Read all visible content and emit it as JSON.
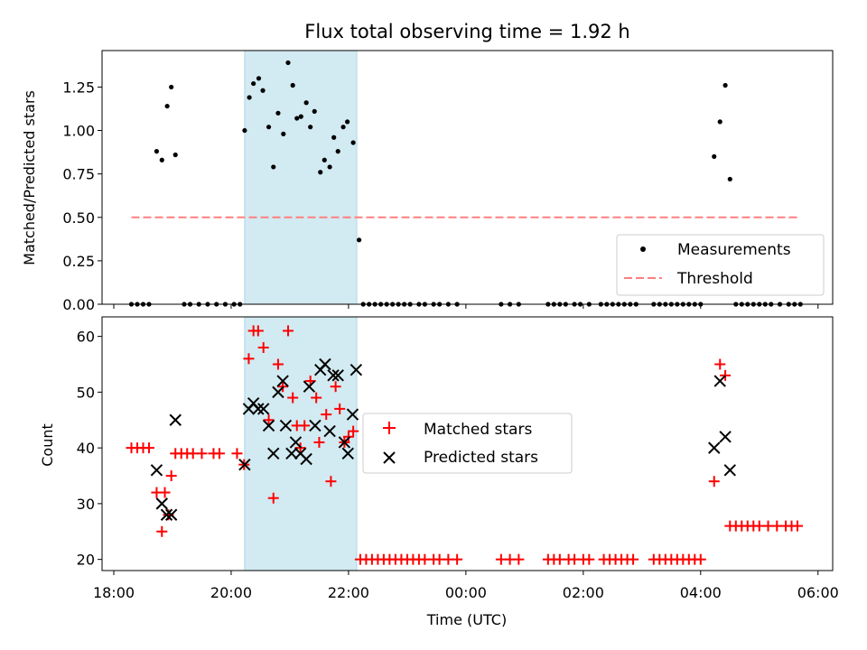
{
  "title": "Flux total observing time = 1.92 h",
  "colors": {
    "measurement": "#000000",
    "threshold": "#ff7f7f",
    "matched": "#ff0000",
    "predicted": "#000000",
    "shade": "#add8e6"
  },
  "chart_data": [
    {
      "type": "scatter",
      "ylabel": "Matched/Predicted stars",
      "ylim": [
        0,
        1.46
      ],
      "yticks": [
        0.0,
        0.25,
        0.5,
        0.75,
        1.0,
        1.25
      ],
      "ytick_labels": [
        "0.00",
        "0.25",
        "0.50",
        "0.75",
        "1.00",
        "1.25"
      ],
      "shaded_span_hours": [
        20.23,
        22.14
      ],
      "legend": {
        "position": "bottom-right",
        "entries": [
          "Measurements",
          "Threshold"
        ]
      },
      "threshold": {
        "name": "Threshold",
        "value": 0.5,
        "x_range_hours": [
          18.3,
          29.7
        ]
      },
      "series": [
        {
          "name": "Measurements",
          "points": [
            [
              18.73,
              0.88
            ],
            [
              18.82,
              0.83
            ],
            [
              18.91,
              1.14
            ],
            [
              18.98,
              1.25
            ],
            [
              19.05,
              0.86
            ],
            [
              20.23,
              1.0
            ],
            [
              20.31,
              1.19
            ],
            [
              20.38,
              1.27
            ],
            [
              20.47,
              1.3
            ],
            [
              20.54,
              1.23
            ],
            [
              20.64,
              1.02
            ],
            [
              20.72,
              0.79
            ],
            [
              20.8,
              1.1
            ],
            [
              20.89,
              0.98
            ],
            [
              20.97,
              1.39
            ],
            [
              21.05,
              1.26
            ],
            [
              21.12,
              1.07
            ],
            [
              21.19,
              1.08
            ],
            [
              21.28,
              1.16
            ],
            [
              21.35,
              1.02
            ],
            [
              21.42,
              1.11
            ],
            [
              21.52,
              0.76
            ],
            [
              21.59,
              0.83
            ],
            [
              21.68,
              0.79
            ],
            [
              21.75,
              0.96
            ],
            [
              21.82,
              0.88
            ],
            [
              21.91,
              1.02
            ],
            [
              21.98,
              1.05
            ],
            [
              22.08,
              0.93
            ],
            [
              22.18,
              0.37
            ],
            [
              28.23,
              0.85
            ],
            [
              28.33,
              1.05
            ],
            [
              28.42,
              1.26
            ],
            [
              28.5,
              0.72
            ],
            [
              18.3,
              0
            ],
            [
              18.4,
              0
            ],
            [
              18.5,
              0
            ],
            [
              18.6,
              0
            ],
            [
              19.2,
              0
            ],
            [
              19.3,
              0
            ],
            [
              19.45,
              0
            ],
            [
              19.6,
              0
            ],
            [
              19.75,
              0
            ],
            [
              19.9,
              0
            ],
            [
              20.05,
              0
            ],
            [
              20.15,
              0
            ],
            [
              22.25,
              0
            ],
            [
              22.35,
              0
            ],
            [
              22.45,
              0
            ],
            [
              22.55,
              0
            ],
            [
              22.65,
              0
            ],
            [
              22.75,
              0
            ],
            [
              22.85,
              0
            ],
            [
              22.95,
              0
            ],
            [
              23.05,
              0
            ],
            [
              23.2,
              0
            ],
            [
              23.3,
              0
            ],
            [
              23.45,
              0
            ],
            [
              23.55,
              0
            ],
            [
              23.7,
              0
            ],
            [
              23.85,
              0
            ],
            [
              24.6,
              0
            ],
            [
              24.75,
              0
            ],
            [
              24.9,
              0
            ],
            [
              25.4,
              0
            ],
            [
              25.5,
              0
            ],
            [
              25.6,
              0
            ],
            [
              25.7,
              0
            ],
            [
              25.85,
              0
            ],
            [
              25.95,
              0
            ],
            [
              26.1,
              0
            ],
            [
              26.3,
              0
            ],
            [
              26.4,
              0
            ],
            [
              26.5,
              0
            ],
            [
              26.6,
              0
            ],
            [
              26.7,
              0
            ],
            [
              26.8,
              0
            ],
            [
              26.9,
              0
            ],
            [
              27.2,
              0
            ],
            [
              27.3,
              0
            ],
            [
              27.4,
              0
            ],
            [
              27.5,
              0
            ],
            [
              27.6,
              0
            ],
            [
              27.7,
              0
            ],
            [
              27.8,
              0
            ],
            [
              27.9,
              0
            ],
            [
              28.0,
              0
            ],
            [
              28.6,
              0
            ],
            [
              28.7,
              0
            ],
            [
              28.8,
              0
            ],
            [
              28.9,
              0
            ],
            [
              29.0,
              0
            ],
            [
              29.1,
              0
            ],
            [
              29.2,
              0
            ],
            [
              29.35,
              0
            ],
            [
              29.5,
              0
            ],
            [
              29.6,
              0
            ],
            [
              29.7,
              0
            ]
          ]
        }
      ]
    },
    {
      "type": "scatter",
      "ylabel": "Count",
      "xlabel": "Time (UTC)",
      "xlim_hours": [
        17.8,
        30.25
      ],
      "ylim": [
        18,
        63.5
      ],
      "yticks": [
        20,
        30,
        40,
        50,
        60
      ],
      "ytick_labels": [
        "20",
        "30",
        "40",
        "50",
        "60"
      ],
      "xticks_hours": [
        18,
        20,
        22,
        24,
        26,
        28,
        30
      ],
      "xtick_labels": [
        "18:00",
        "20:00",
        "22:00",
        "00:00",
        "02:00",
        "04:00",
        "06:00"
      ],
      "shaded_span_hours": [
        20.23,
        22.14
      ],
      "legend": {
        "position": "center",
        "entries": [
          "Matched stars",
          "Predicted stars"
        ]
      },
      "series": [
        {
          "name": "Matched stars",
          "marker": "+",
          "points": [
            [
              18.3,
              40
            ],
            [
              18.4,
              40
            ],
            [
              18.5,
              40
            ],
            [
              18.6,
              40
            ],
            [
              18.73,
              32
            ],
            [
              18.82,
              25
            ],
            [
              18.87,
              32
            ],
            [
              18.93,
              28
            ],
            [
              18.98,
              35
            ],
            [
              19.05,
              39
            ],
            [
              19.15,
              39
            ],
            [
              19.25,
              39
            ],
            [
              19.35,
              39
            ],
            [
              19.5,
              39
            ],
            [
              19.7,
              39
            ],
            [
              19.8,
              39
            ],
            [
              20.1,
              39
            ],
            [
              20.22,
              37
            ],
            [
              20.3,
              56
            ],
            [
              20.38,
              61
            ],
            [
              20.46,
              61
            ],
            [
              20.55,
              58
            ],
            [
              20.64,
              45
            ],
            [
              20.72,
              31
            ],
            [
              20.8,
              55
            ],
            [
              20.88,
              51
            ],
            [
              20.97,
              61
            ],
            [
              21.05,
              49
            ],
            [
              21.12,
              44
            ],
            [
              21.18,
              40
            ],
            [
              21.25,
              44
            ],
            [
              21.35,
              52
            ],
            [
              21.45,
              49
            ],
            [
              21.5,
              41
            ],
            [
              21.62,
              46
            ],
            [
              21.7,
              34
            ],
            [
              21.78,
              51
            ],
            [
              21.85,
              47
            ],
            [
              21.93,
              41
            ],
            [
              22.0,
              42
            ],
            [
              22.08,
              43
            ],
            [
              22.2,
              20
            ],
            [
              22.3,
              20
            ],
            [
              22.4,
              20
            ],
            [
              22.5,
              20
            ],
            [
              22.6,
              20
            ],
            [
              22.7,
              20
            ],
            [
              22.8,
              20
            ],
            [
              22.9,
              20
            ],
            [
              23.0,
              20
            ],
            [
              23.1,
              20
            ],
            [
              23.2,
              20
            ],
            [
              23.3,
              20
            ],
            [
              23.45,
              20
            ],
            [
              23.55,
              20
            ],
            [
              23.7,
              20
            ],
            [
              23.85,
              20
            ],
            [
              24.6,
              20
            ],
            [
              24.75,
              20
            ],
            [
              24.9,
              20
            ],
            [
              25.4,
              20
            ],
            [
              25.5,
              20
            ],
            [
              25.6,
              20
            ],
            [
              25.75,
              20
            ],
            [
              25.85,
              20
            ],
            [
              26.0,
              20
            ],
            [
              26.1,
              20
            ],
            [
              26.35,
              20
            ],
            [
              26.45,
              20
            ],
            [
              26.55,
              20
            ],
            [
              26.65,
              20
            ],
            [
              26.75,
              20
            ],
            [
              26.85,
              20
            ],
            [
              27.2,
              20
            ],
            [
              27.3,
              20
            ],
            [
              27.4,
              20
            ],
            [
              27.5,
              20
            ],
            [
              27.6,
              20
            ],
            [
              27.7,
              20
            ],
            [
              27.8,
              20
            ],
            [
              27.9,
              20
            ],
            [
              28.0,
              20
            ],
            [
              28.23,
              34
            ],
            [
              28.33,
              55
            ],
            [
              28.42,
              53
            ],
            [
              28.5,
              26
            ],
            [
              28.6,
              26
            ],
            [
              28.7,
              26
            ],
            [
              28.8,
              26
            ],
            [
              28.9,
              26
            ],
            [
              29.0,
              26
            ],
            [
              29.15,
              26
            ],
            [
              29.3,
              26
            ],
            [
              29.45,
              26
            ],
            [
              29.55,
              26
            ],
            [
              29.65,
              26
            ]
          ]
        },
        {
          "name": "Predicted stars",
          "marker": "x",
          "points": [
            [
              18.73,
              36
            ],
            [
              18.82,
              30
            ],
            [
              18.9,
              28
            ],
            [
              18.98,
              28
            ],
            [
              19.05,
              45
            ],
            [
              20.23,
              37
            ],
            [
              20.3,
              47
            ],
            [
              20.38,
              48
            ],
            [
              20.46,
              47
            ],
            [
              20.55,
              47
            ],
            [
              20.64,
              44
            ],
            [
              20.72,
              39
            ],
            [
              20.8,
              50
            ],
            [
              20.88,
              52
            ],
            [
              20.93,
              44
            ],
            [
              21.03,
              39
            ],
            [
              21.1,
              41
            ],
            [
              21.18,
              39
            ],
            [
              21.28,
              38
            ],
            [
              21.33,
              51
            ],
            [
              21.43,
              44
            ],
            [
              21.52,
              54
            ],
            [
              21.6,
              55
            ],
            [
              21.68,
              43
            ],
            [
              21.74,
              53
            ],
            [
              21.82,
              53
            ],
            [
              21.93,
              41
            ],
            [
              21.99,
              39
            ],
            [
              22.07,
              46
            ],
            [
              22.13,
              54
            ],
            [
              28.23,
              40
            ],
            [
              28.33,
              52
            ],
            [
              28.42,
              42
            ],
            [
              28.5,
              36
            ]
          ]
        }
      ]
    }
  ]
}
